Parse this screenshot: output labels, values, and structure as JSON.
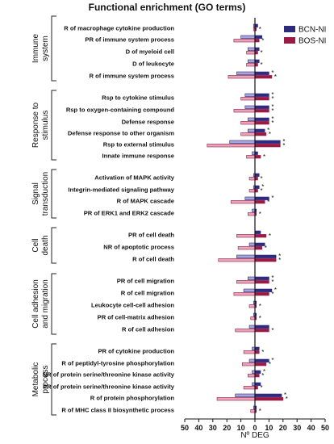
{
  "chart_data": {
    "type": "bar",
    "orientation": "horizontal",
    "title": "Functional enrichment (GO terms)",
    "xlabel": "Nº DEG",
    "x_ticks": [
      "50",
      "40",
      "30",
      "20",
      "10",
      "0",
      "10",
      "20",
      "30",
      "40",
      "50"
    ],
    "xlim": [
      -50,
      50
    ],
    "legend_position": "top-right",
    "series": [
      {
        "name": "BCN-NI",
        "color": "#2e2a7e",
        "light": "#a9a6d6"
      },
      {
        "name": "BOS-NI",
        "color": "#9b1a45",
        "light": "#e5a6bd"
      }
    ],
    "groups": [
      {
        "label": "Immune system",
        "lines": [
          "Immune",
          "system"
        ],
        "terms": [
          {
            "label": "R of macrophage cytokine production",
            "bcn": [
              -1,
              2
            ],
            "bos": [
              -1,
              1
            ],
            "stars": [
              false,
              true
            ]
          },
          {
            "label": "PR of immune system process",
            "bcn": [
              -10,
              5
            ],
            "bos": [
              -15,
              3
            ],
            "stars": [
              false,
              true
            ]
          },
          {
            "label": "D of myeloid cell",
            "bcn": [
              -5,
              3
            ],
            "bos": [
              -6,
              2
            ],
            "stars": [
              false,
              true
            ]
          },
          {
            "label": "D of leukocyte",
            "bcn": [
              -5,
              3
            ],
            "bos": [
              -6,
              2
            ],
            "stars": [
              false,
              true
            ]
          },
          {
            "label": "R of immune system process",
            "bcn": [
              -13,
              10
            ],
            "bos": [
              -19,
              12
            ],
            "stars": [
              true,
              true
            ]
          }
        ]
      },
      {
        "label": "Response to stimulus",
        "lines": [
          "Response to",
          "stimulus"
        ],
        "terms": [
          {
            "label": "Rsp to cytokine stimulus",
            "bcn": [
              -7,
              10
            ],
            "bos": [
              -10,
              10
            ],
            "stars": [
              true,
              true
            ]
          },
          {
            "label": "Rsp to oxygen-containing compound",
            "bcn": [
              -7,
              10
            ],
            "bos": [
              -15,
              10
            ],
            "stars": [
              true,
              true
            ]
          },
          {
            "label": "Defense response",
            "bcn": [
              -5,
              10
            ],
            "bos": [
              -10,
              10
            ],
            "stars": [
              true,
              true
            ]
          },
          {
            "label": "Defense response to other organism",
            "bcn": [
              -5,
              7
            ],
            "bos": [
              -10,
              8
            ],
            "stars": [
              true,
              true
            ]
          },
          {
            "label": "Rsp to external stimulus",
            "bcn": [
              -18,
              18
            ],
            "bos": [
              -34,
              18
            ],
            "stars": [
              true,
              true
            ]
          },
          {
            "label": "Innate immune response",
            "bcn": [
              -2,
              2
            ],
            "bos": [
              -6,
              4
            ],
            "stars": [
              false,
              true
            ]
          }
        ]
      },
      {
        "label": "Signal transduction",
        "lines": [
          "Signal",
          "transduction"
        ],
        "terms": [
          {
            "label": "Activation of MAPK activity",
            "bcn": [
              -1,
              3
            ],
            "bos": [
              -4,
              2
            ],
            "stars": [
              false,
              true
            ]
          },
          {
            "label": "Integrin-mediated signaling pathway",
            "bcn": [
              -1,
              3
            ],
            "bos": [
              -4,
              2
            ],
            "stars": [
              true,
              true
            ]
          },
          {
            "label": "R of MAPK cascade",
            "bcn": [
              -7,
              10
            ],
            "bos": [
              -17,
              7
            ],
            "stars": [
              true,
              true
            ]
          },
          {
            "label": "PR of ERK1 and ERK2 cascade",
            "bcn": [
              -2,
              1
            ],
            "bos": [
              -5,
              1
            ],
            "stars": [
              false,
              true
            ]
          }
        ]
      },
      {
        "label": "Cell death",
        "lines": [
          "Cell",
          "death"
        ],
        "terms": [
          {
            "label": "PR of cell death",
            "bcn": [
              0,
              4
            ],
            "bos": [
              -13,
              8
            ],
            "stars": [
              false,
              true
            ]
          },
          {
            "label": "NR of apoptotic process",
            "bcn": [
              -4,
              7
            ],
            "bos": [
              -12,
              5
            ],
            "stars": [
              false,
              true
            ]
          },
          {
            "label": "R of cell death",
            "bcn": [
              -13,
              15
            ],
            "bos": [
              -26,
              15
            ],
            "stars": [
              true,
              true
            ]
          }
        ]
      },
      {
        "label": "Cell adhesion and migration",
        "lines": [
          "Cell adhesion",
          "and migration"
        ],
        "terms": [
          {
            "label": "PR of cell migration",
            "bcn": [
              -5,
              10
            ],
            "bos": [
              -13,
              10
            ],
            "stars": [
              true,
              true
            ]
          },
          {
            "label": "R of cell migration",
            "bcn": [
              -8,
              12
            ],
            "bos": [
              -15,
              10
            ],
            "stars": [
              true,
              true
            ]
          },
          {
            "label": "Leukocyte cell-cell adhesion",
            "bcn": [
              -1,
              1
            ],
            "bos": [
              -4,
              1
            ],
            "stars": [
              false,
              true
            ]
          },
          {
            "label": "PR of cell-matrix adhesion",
            "bcn": [
              -1,
              1
            ],
            "bos": [
              -3,
              1
            ],
            "stars": [
              false,
              true
            ]
          },
          {
            "label": "R of cell adhesion",
            "bcn": [
              -4,
              10
            ],
            "bos": [
              -14,
              10
            ],
            "stars": [
              false,
              true
            ]
          }
        ]
      },
      {
        "label": "Metabolic process",
        "lines": [
          "Metabolic",
          "process"
        ],
        "terms": [
          {
            "label": "PR of cytokine production",
            "bcn": [
              -2,
              3
            ],
            "bos": [
              -8,
              3
            ],
            "stars": [
              false,
              true
            ]
          },
          {
            "label": "R of peptidyl-tyrosine phosphorylation",
            "bcn": [
              -4,
              10
            ],
            "bos": [
              -9,
              8
            ],
            "stars": [
              true,
              true
            ]
          },
          {
            "label": "NR of protein serine/threonine kinase activity",
            "bcn": [
              -2,
              4
            ],
            "bos": [
              -5,
              3
            ],
            "stars": [
              true,
              true
            ]
          },
          {
            "label": "PR of protein serine/threonine kinase activity",
            "bcn": [
              -2,
              4
            ],
            "bos": [
              -8,
              2
            ],
            "stars": [
              false,
              true
            ]
          },
          {
            "label": "R of protein phosphorylation",
            "bcn": [
              -14,
              19
            ],
            "bos": [
              -27,
              20
            ],
            "stars": [
              true,
              true
            ]
          },
          {
            "label": "R of MHC class II biosynthetic process",
            "bcn": [
              -1,
              1
            ],
            "bos": [
              -3,
              1
            ],
            "stars": [
              false,
              true
            ]
          }
        ]
      }
    ]
  }
}
